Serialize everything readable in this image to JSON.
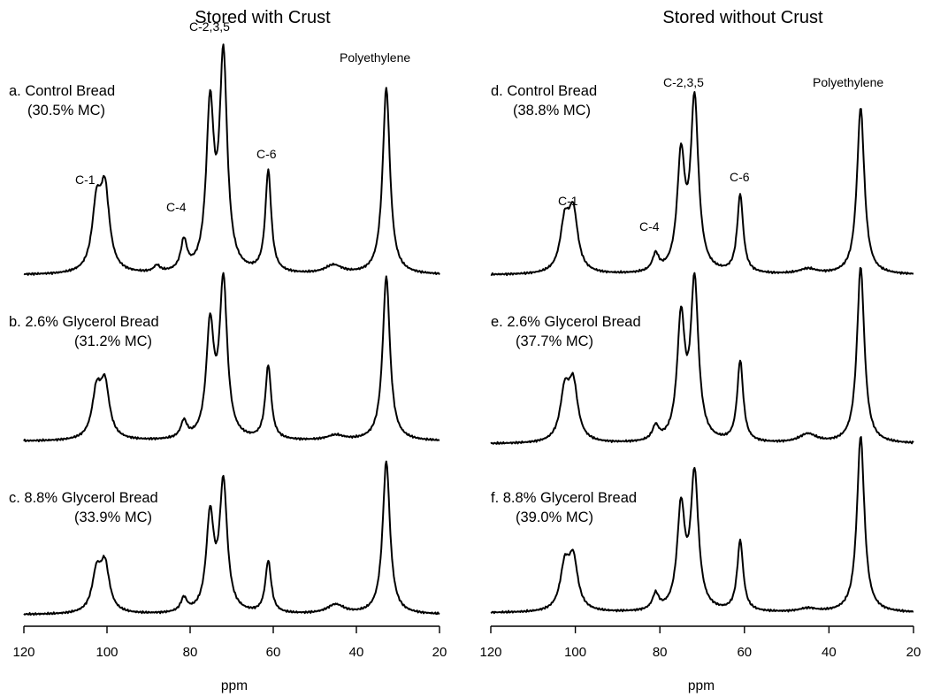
{
  "chart_data": [
    {
      "type": "line",
      "title": "Stored with Crust",
      "xlabel": "ppm",
      "xlim": [
        120,
        20
      ],
      "xticks": [
        "120",
        "100",
        "80",
        "60",
        "40",
        "20"
      ],
      "peak_labels": [
        "C-1",
        "C-4",
        "C-2,3,5",
        "C-6",
        "Polyethylene"
      ],
      "series": [
        {
          "name": "a. Control Bread",
          "sublabel": "(30.5% MC)",
          "peaks": [
            {
              "ppm": 102.5,
              "height": 0.3
            },
            {
              "ppm": 100.5,
              "height": 0.37
            },
            {
              "ppm": 88.0,
              "height": 0.03
            },
            {
              "ppm": 81.5,
              "height": 0.14
            },
            {
              "ppm": 75.2,
              "height": 0.76
            },
            {
              "ppm": 72.0,
              "height": 1.0
            },
            {
              "ppm": 61.2,
              "height": 0.48
            },
            {
              "ppm": 45.5,
              "height": 0.04
            },
            {
              "ppm": 32.8,
              "height": 0.88
            }
          ]
        },
        {
          "name": "b. 2.6% Glycerol Bread",
          "sublabel": "(31.2% MC)",
          "peaks": [
            {
              "ppm": 102.5,
              "height": 0.27
            },
            {
              "ppm": 100.5,
              "height": 0.31
            },
            {
              "ppm": 81.5,
              "height": 0.1
            },
            {
              "ppm": 75.2,
              "height": 0.66
            },
            {
              "ppm": 72.0,
              "height": 0.93
            },
            {
              "ppm": 61.2,
              "height": 0.44
            },
            {
              "ppm": 45.0,
              "height": 0.03
            },
            {
              "ppm": 32.8,
              "height": 0.98
            }
          ]
        },
        {
          "name": "c. 8.8% Glycerol Bread",
          "sublabel": "(33.9% MC)",
          "peaks": [
            {
              "ppm": 102.5,
              "height": 0.25
            },
            {
              "ppm": 100.5,
              "height": 0.3
            },
            {
              "ppm": 81.5,
              "height": 0.09
            },
            {
              "ppm": 75.2,
              "height": 0.62
            },
            {
              "ppm": 72.0,
              "height": 0.84
            },
            {
              "ppm": 61.2,
              "height": 0.34
            },
            {
              "ppm": 45.0,
              "height": 0.06
            },
            {
              "ppm": 32.8,
              "height": 1.0
            }
          ]
        }
      ]
    },
    {
      "type": "line",
      "title": "Stored without Crust",
      "xlabel": "ppm",
      "xlim": [
        120,
        20
      ],
      "xticks": [
        "120",
        "100",
        "80",
        "60",
        "40",
        "20"
      ],
      "peak_labels": [
        "C-1",
        "C-4",
        "C-2,3,5",
        "C-6",
        "Polyethylene"
      ],
      "series": [
        {
          "name": "d. Control Bread",
          "sublabel": "(38.8% MC)",
          "peaks": [
            {
              "ppm": 102.5,
              "height": 0.28
            },
            {
              "ppm": 100.5,
              "height": 0.34
            },
            {
              "ppm": 81.0,
              "height": 0.1
            },
            {
              "ppm": 75.0,
              "height": 0.66
            },
            {
              "ppm": 71.8,
              "height": 1.0
            },
            {
              "ppm": 61.0,
              "height": 0.46
            },
            {
              "ppm": 45.0,
              "height": 0.03
            },
            {
              "ppm": 32.5,
              "height": 0.98
            }
          ]
        },
        {
          "name": "e. 2.6% Glycerol Bread",
          "sublabel": "(37.7% MC)",
          "peaks": [
            {
              "ppm": 102.5,
              "height": 0.27
            },
            {
              "ppm": 100.5,
              "height": 0.31
            },
            {
              "ppm": 81.0,
              "height": 0.08
            },
            {
              "ppm": 75.0,
              "height": 0.68
            },
            {
              "ppm": 71.8,
              "height": 0.89
            },
            {
              "ppm": 61.0,
              "height": 0.46
            },
            {
              "ppm": 45.0,
              "height": 0.05
            },
            {
              "ppm": 32.5,
              "height": 1.0
            }
          ]
        },
        {
          "name": "f. 8.8% Glycerol Bread",
          "sublabel": "(39.0% MC)",
          "peaks": [
            {
              "ppm": 102.5,
              "height": 0.24
            },
            {
              "ppm": 100.5,
              "height": 0.28
            },
            {
              "ppm": 81.0,
              "height": 0.09
            },
            {
              "ppm": 75.0,
              "height": 0.57
            },
            {
              "ppm": 71.8,
              "height": 0.76
            },
            {
              "ppm": 61.0,
              "height": 0.4
            },
            {
              "ppm": 45.0,
              "height": 0.02
            },
            {
              "ppm": 32.5,
              "height": 1.0
            }
          ]
        }
      ]
    }
  ]
}
